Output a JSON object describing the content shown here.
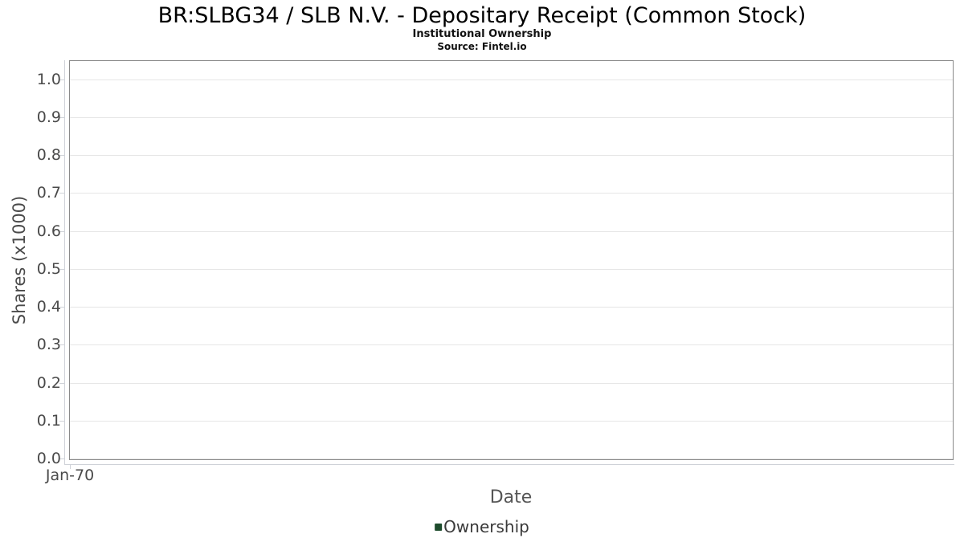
{
  "chart_data": {
    "type": "bar",
    "title": "BR:SLBG34 / SLB N.V. - Depositary Receipt (Common Stock)",
    "subtitle": "Institutional Ownership",
    "source": "Source: Fintel.io",
    "xlabel": "Date",
    "ylabel": "Shares (x1000)",
    "x_tick_labels": [
      "Jan-70"
    ],
    "y_tick_labels": [
      "0.0",
      "0.1",
      "0.2",
      "0.3",
      "0.4",
      "0.5",
      "0.6",
      "0.7",
      "0.8",
      "0.9",
      "1.0"
    ],
    "y_tick_values": [
      0.0,
      0.1,
      0.2,
      0.3,
      0.4,
      0.5,
      0.6,
      0.7,
      0.8,
      0.9,
      1.0
    ],
    "ylim": [
      0.0,
      1.05
    ],
    "grid": true,
    "legend_position": "bottom",
    "categories": [],
    "series": [
      {
        "name": "Ownership",
        "color": "#1d4b2c",
        "values": []
      }
    ]
  },
  "colors": {
    "background": "#ffffff",
    "plot_border": "#8a8a8a",
    "grid_line": "#e6e6e6",
    "axis_line": "#cfd2d8",
    "tick_label": "#4a4a4a",
    "axis_title": "#555555",
    "legend_text": "#3a3a3a",
    "series_green": "#1d4b2c"
  }
}
